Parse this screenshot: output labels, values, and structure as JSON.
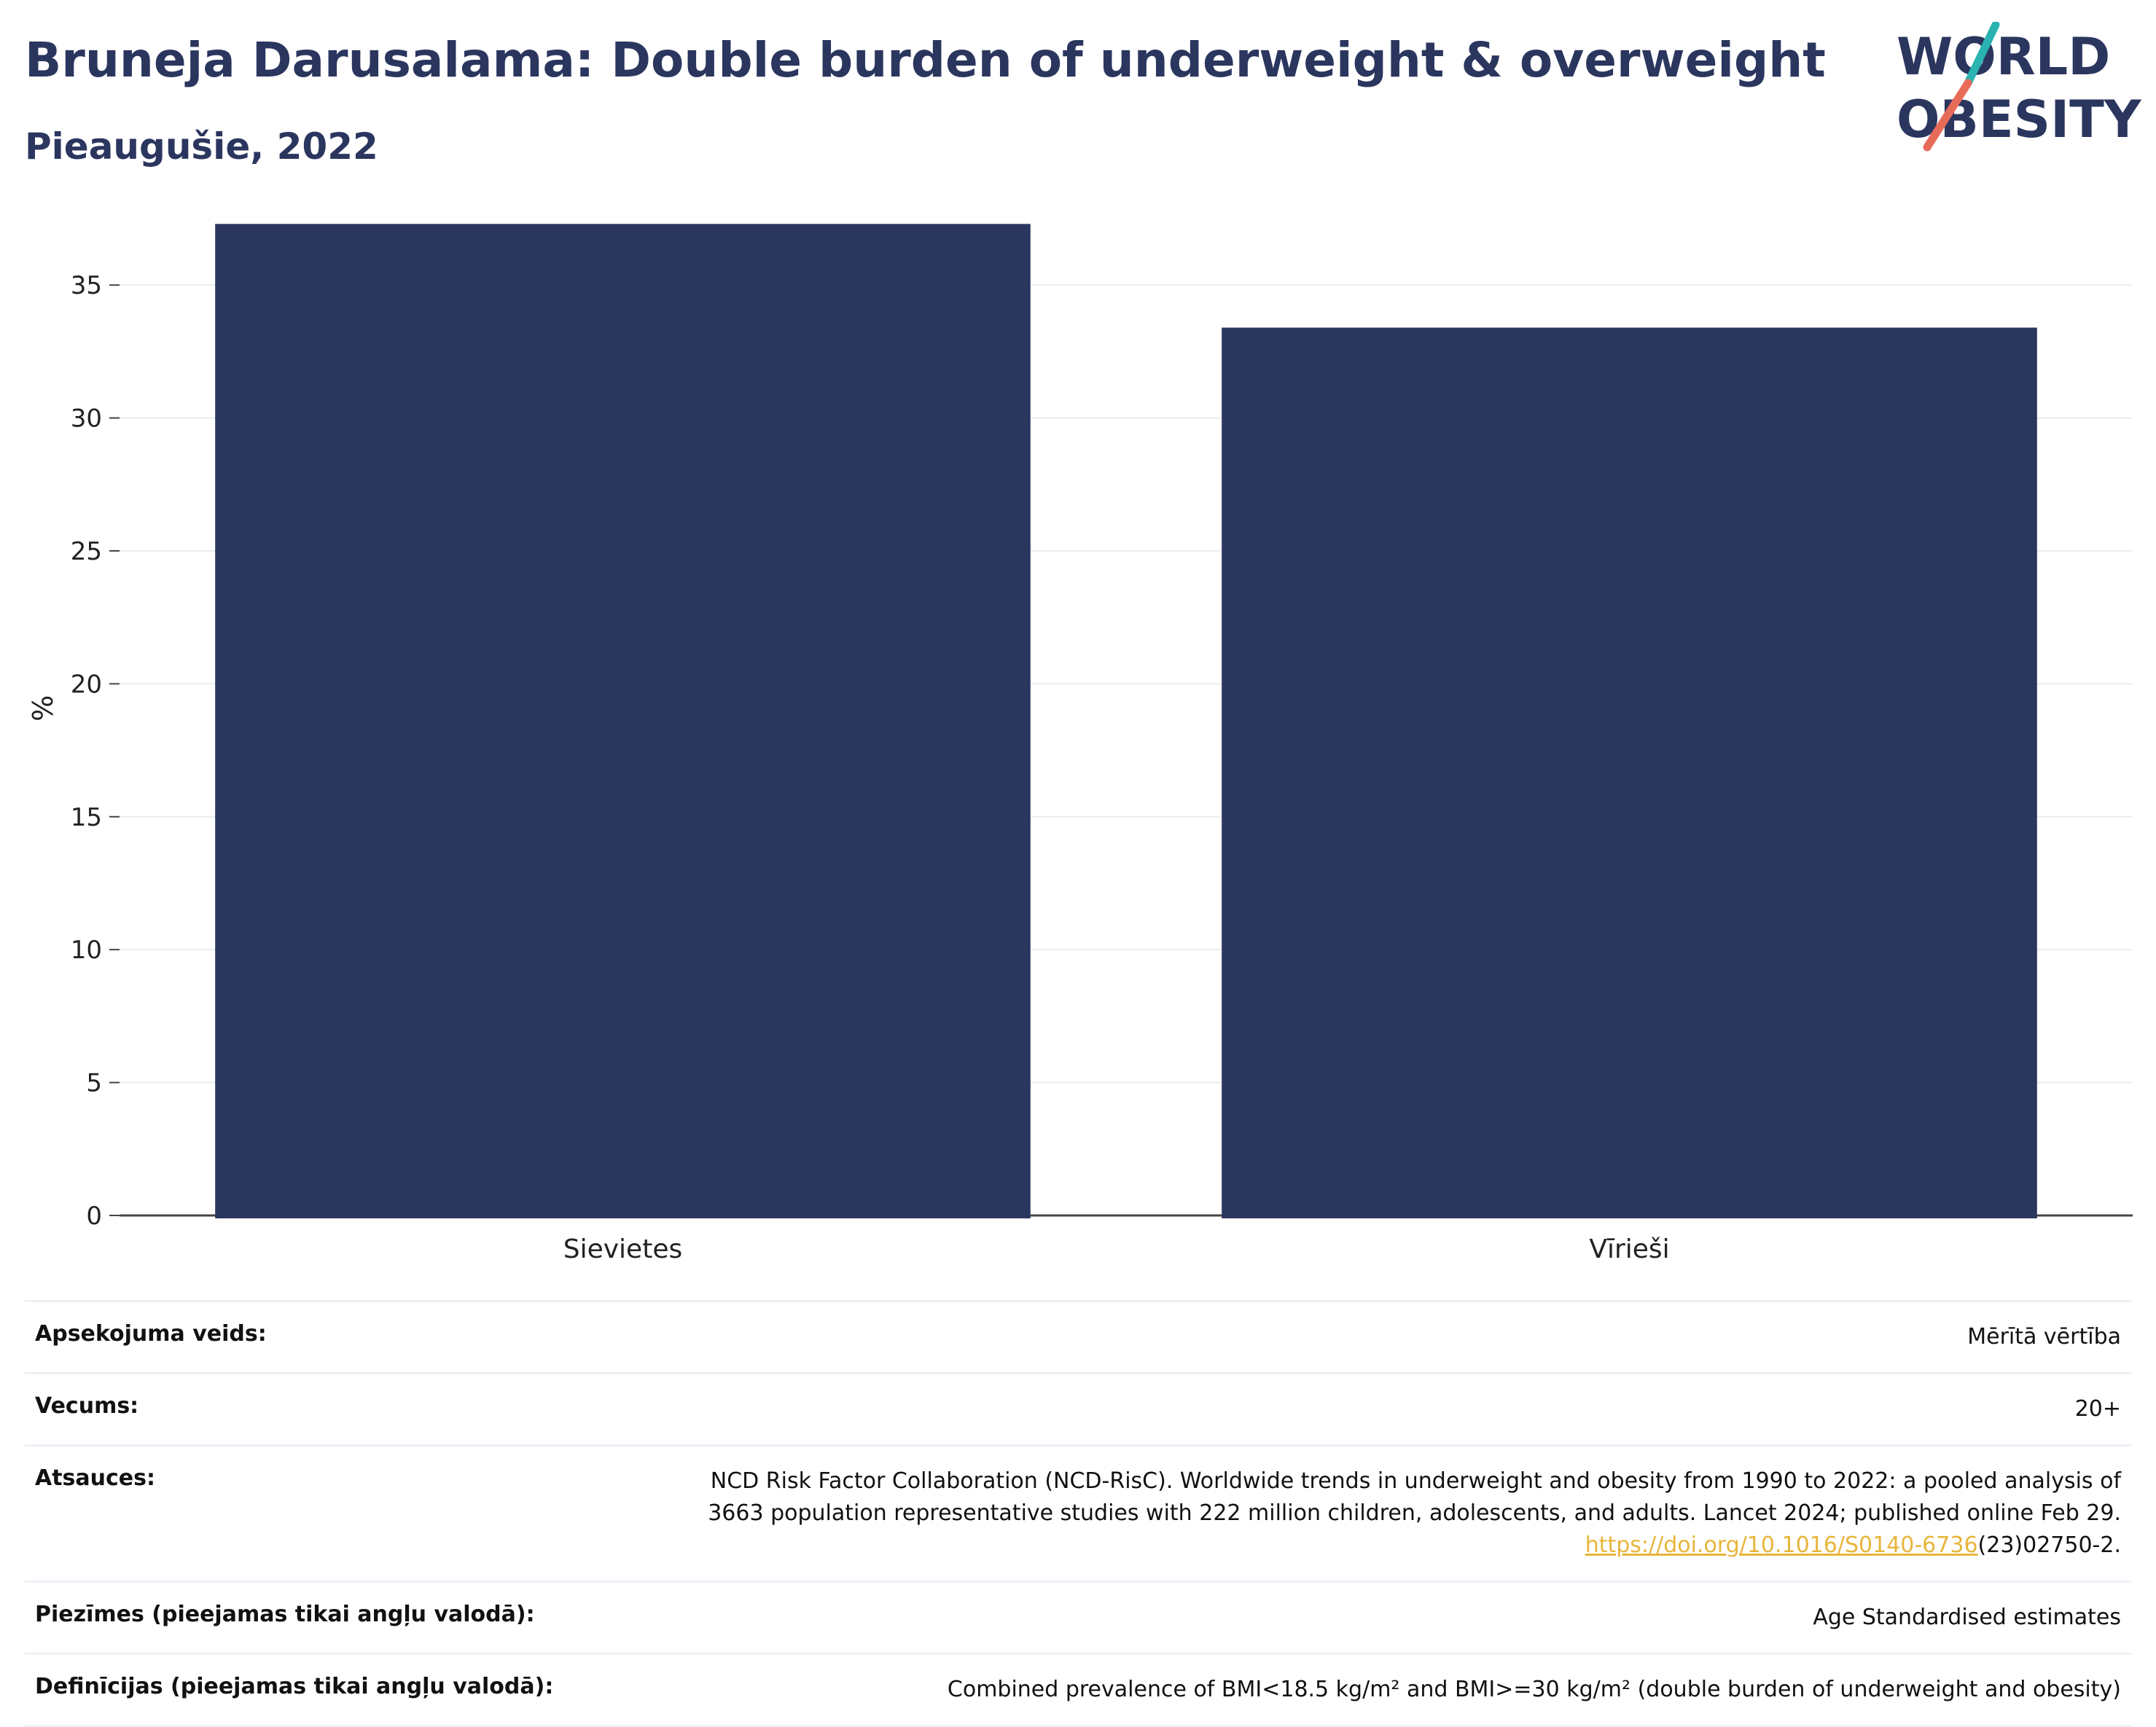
{
  "header": {
    "title": "Bruneja Darusalama: Double burden of underweight & overweight",
    "subtitle": "Pieaugušie, 2022"
  },
  "logo": {
    "line1": "WORLD",
    "line2": "OBESITY",
    "accent_colors": [
      "#2ab3b0",
      "#e86b5a"
    ],
    "text_color": "#2b365f"
  },
  "chart_data": {
    "type": "bar",
    "categories": [
      "Sievietes",
      "Vīrieši"
    ],
    "values": [
      37.3,
      33.4
    ],
    "ylabel": "%",
    "ylim": [
      0,
      37.5
    ],
    "yticks": [
      0,
      5,
      10,
      15,
      20,
      25,
      30,
      35
    ],
    "grid": true,
    "bar_color": "#2b365f"
  },
  "meta": {
    "rows": [
      {
        "key": "Apsekojuma veids:",
        "value": "Mērītā vērtība"
      },
      {
        "key": "Vecums:",
        "value": "20+"
      },
      {
        "key": "Atsauces:",
        "value_line1": "NCD Risk Factor Collaboration (NCD-RisC). Worldwide trends in underweight and obesity from 1990 to 2022: a pooled analysis of",
        "value_line2": "3663 population representative studies with 222 million children, adolescents, and adults. Lancet 2024; published online Feb 29.",
        "link": "https://doi.org/10.1016/S0140-6736",
        "link_suffix": "(23)02750-2."
      },
      {
        "key": "Piezīmes (pieejamas tikai angļu valodā):",
        "value": "Age Standardised estimates"
      },
      {
        "key": "Definīcijas (pieejamas tikai angļu valodā):",
        "value": "Combined prevalence of BMI<18.5 kg/m² and BMI>=30 kg/m² (double burden of underweight and obesity)"
      }
    ]
  }
}
